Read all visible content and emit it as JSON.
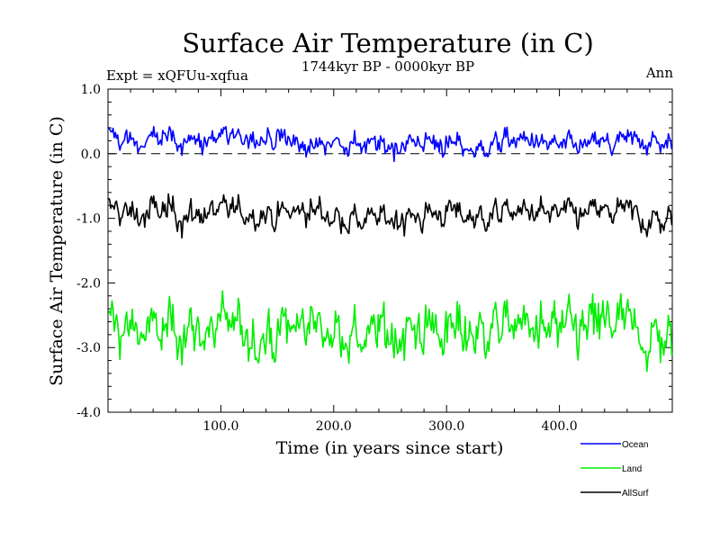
{
  "chart_data": {
    "type": "line",
    "title": "Surface Air Temperature (in C)",
    "subtitle": "1744kyr BP - 0000kyr BP",
    "experiment_label": "Expt = xQFUu-xqfua",
    "season_label": "Ann",
    "xlabel": "Time (in years since start)",
    "ylabel": "Surface Air Temperature (in C)",
    "xlim": [
      0,
      500
    ],
    "ylim": [
      -4.0,
      1.0
    ],
    "x_ticks": [
      {
        "value": 100,
        "label": "100.0"
      },
      {
        "value": 200,
        "label": "200.0"
      },
      {
        "value": 300,
        "label": "300.0"
      },
      {
        "value": 400,
        "label": "400.0"
      }
    ],
    "y_ticks": [
      {
        "value": 1.0,
        "label": "1.0"
      },
      {
        "value": 0.0,
        "label": "0.0"
      },
      {
        "value": -1.0,
        "label": "-1.0"
      },
      {
        "value": -2.0,
        "label": "-2.0"
      },
      {
        "value": -3.0,
        "label": "-3.0"
      },
      {
        "value": -4.0,
        "label": "-4.0"
      }
    ],
    "reference_line": {
      "y": 0.0,
      "style": "dashed"
    },
    "series": [
      {
        "name": "Ocean",
        "color": "#0000ff",
        "mean": 0.15,
        "approx_values_every_25yr": [
          0.3,
          0.15,
          0.25,
          0.2,
          0.2,
          0.3,
          0.25,
          0.1,
          0.2,
          0.15,
          0.1,
          0.2,
          0.15,
          0.05,
          0.2,
          0.2,
          0.1,
          0.15,
          0.15,
          0.2,
          0.15
        ]
      },
      {
        "name": "Land",
        "color": "#00ee00",
        "mean": -2.75,
        "approx_values_every_25yr": [
          -2.6,
          -2.8,
          -2.7,
          -2.75,
          -2.65,
          -2.7,
          -2.8,
          -2.6,
          -2.7,
          -2.9,
          -2.8,
          -2.75,
          -2.7,
          -2.8,
          -2.65,
          -2.7,
          -2.75,
          -2.7,
          -2.6,
          -2.85,
          -2.9
        ]
      },
      {
        "name": "AllSurf",
        "color": "#000000",
        "mean": -0.95,
        "approx_values_every_25yr": [
          -0.85,
          -0.95,
          -0.9,
          -0.95,
          -0.9,
          -0.9,
          -0.95,
          -0.85,
          -0.95,
          -1.05,
          -1.0,
          -0.95,
          -0.9,
          -1.0,
          -0.9,
          -0.9,
          -0.95,
          -0.95,
          -0.9,
          -1.0,
          -1.05
        ]
      }
    ],
    "legend": {
      "placement": "bottom-right",
      "entries": [
        "Ocean",
        "Land",
        "AllSurf"
      ]
    }
  }
}
